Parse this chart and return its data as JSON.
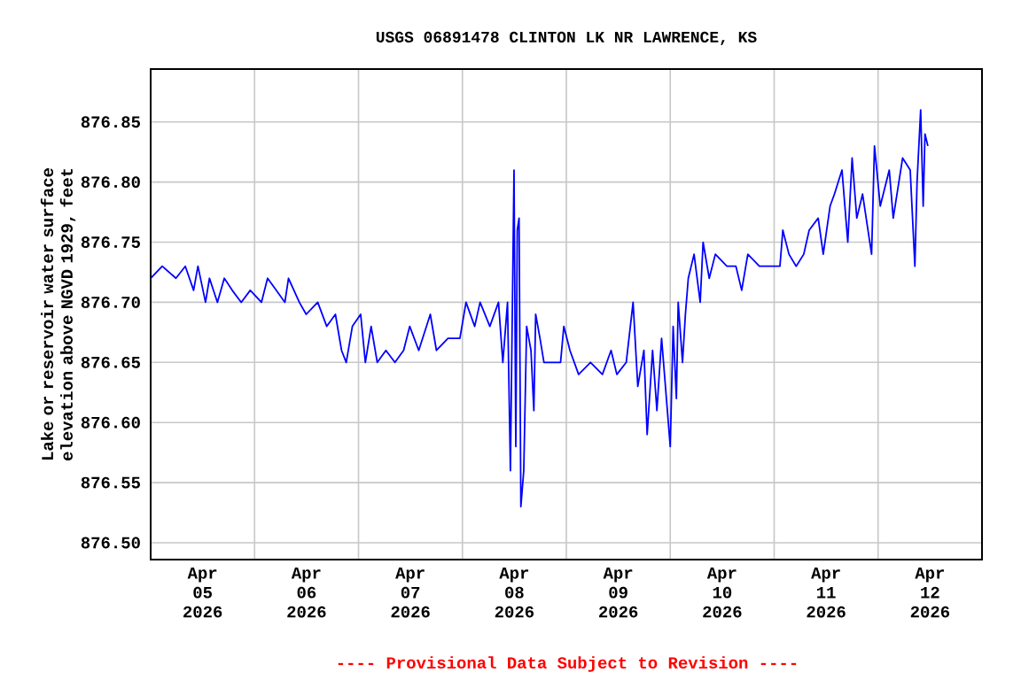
{
  "chart_data": {
    "type": "line",
    "title": "USGS 06891478 CLINTON LK NR LAWRENCE, KS",
    "ylabel": "Lake or reservoir water surface elevation above NGVD 1929, feet",
    "annotations": [
      "---- Provisional Data Subject to Revision ----"
    ],
    "xlim": [
      "2026-04-05T00:00",
      "2026-04-13T00:00"
    ],
    "xticks": [
      {
        "value": "2026-04-05T12:00",
        "label": "Apr 05 2026"
      },
      {
        "value": "2026-04-06T00:00",
        "label": null
      },
      {
        "value": "2026-04-06T12:00",
        "label": "Apr 06 2026"
      },
      {
        "value": "2026-04-07T00:00",
        "label": null
      },
      {
        "value": "2026-04-07T12:00",
        "label": "Apr 07 2026"
      },
      {
        "value": "2026-04-08T00:00",
        "label": null
      },
      {
        "value": "2026-04-08T12:00",
        "label": "Apr 08 2026"
      },
      {
        "value": "2026-04-09T00:00",
        "label": null
      },
      {
        "value": "2026-04-09T12:00",
        "label": "Apr 09 2026"
      },
      {
        "value": "2026-04-10T00:00",
        "label": null
      },
      {
        "value": "2026-04-10T12:00",
        "label": "Apr 10 2026"
      },
      {
        "value": "2026-04-11T00:00",
        "label": null
      },
      {
        "value": "2026-04-11T12:00",
        "label": "Apr 11 2026"
      },
      {
        "value": "2026-04-12T00:00",
        "label": null
      },
      {
        "value": "2026-04-12T12:00",
        "label": "Apr 12 2026"
      }
    ],
    "ylim": [
      876.486,
      876.894
    ],
    "yticks": [
      {
        "value": 876.5,
        "label": "876.50"
      },
      {
        "value": 876.55,
        "label": "876.55"
      },
      {
        "value": 876.6,
        "label": "876.60"
      },
      {
        "value": 876.65,
        "label": "876.65"
      },
      {
        "value": 876.7,
        "label": "876.70"
      },
      {
        "value": 876.75,
        "label": "876.75"
      },
      {
        "value": 876.8,
        "label": "876.80"
      },
      {
        "value": 876.85,
        "label": "876.85"
      }
    ],
    "grid": true,
    "series": [
      {
        "color": "#0000ff",
        "x": [
          "2026-04-05T00:00",
          "2026-04-05T02:40",
          "2026-04-05T05:50",
          "2026-04-05T08:00",
          "2026-04-05T09:55",
          "2026-04-05T10:55",
          "2026-04-05T12:40",
          "2026-04-05T13:35",
          "2026-04-05T15:25",
          "2026-04-05T17:00",
          "2026-04-05T18:50",
          "2026-04-05T20:55",
          "2026-04-05T23:00",
          "2026-04-06T01:35",
          "2026-04-06T03:00",
          "2026-04-06T05:00",
          "2026-04-06T07:00",
          "2026-04-06T07:50",
          "2026-04-06T10:20",
          "2026-04-06T11:55",
          "2026-04-06T14:35",
          "2026-04-06T16:40",
          "2026-04-06T18:40",
          "2026-04-06T20:05",
          "2026-04-06T21:10",
          "2026-04-06T22:35",
          "2026-04-07T00:30",
          "2026-04-07T01:35",
          "2026-04-07T02:55",
          "2026-04-07T04:20",
          "2026-04-07T06:20",
          "2026-04-07T08:25",
          "2026-04-07T10:25",
          "2026-04-07T11:50",
          "2026-04-07T13:55",
          "2026-04-07T16:35",
          "2026-04-07T18:00",
          "2026-04-07T20:40",
          "2026-04-07T23:25",
          "2026-04-08T00:50",
          "2026-04-08T02:50",
          "2026-04-08T04:05",
          "2026-04-08T06:20",
          "2026-04-08T08:20",
          "2026-04-08T09:20",
          "2026-04-08T10:25",
          "2026-04-08T11:05",
          "2026-04-08T11:55",
          "2026-04-08T12:20",
          "2026-04-08T12:40",
          "2026-04-08T13:05",
          "2026-04-08T13:30",
          "2026-04-08T14:10",
          "2026-04-08T14:50",
          "2026-04-08T15:50",
          "2026-04-08T16:30",
          "2026-04-08T16:55",
          "2026-04-08T17:55",
          "2026-04-08T18:50",
          "2026-04-08T20:00",
          "2026-04-08T22:40",
          "2026-04-08T23:25",
          "2026-04-09T00:50",
          "2026-04-09T02:50",
          "2026-04-09T05:35",
          "2026-04-09T08:20",
          "2026-04-09T10:20",
          "2026-04-09T11:40",
          "2026-04-09T13:50",
          "2026-04-09T15:25",
          "2026-04-09T16:30",
          "2026-04-09T17:55",
          "2026-04-09T18:40",
          "2026-04-09T19:55",
          "2026-04-09T20:55",
          "2026-04-09T22:00",
          "2026-04-09T23:20",
          "2026-04-10T00:00",
          "2026-04-10T00:40",
          "2026-04-10T01:25",
          "2026-04-10T01:50",
          "2026-04-10T02:50",
          "2026-04-10T03:30",
          "2026-04-10T04:10",
          "2026-04-10T05:30",
          "2026-04-10T06:55",
          "2026-04-10T07:35",
          "2026-04-10T09:00",
          "2026-04-10T10:25",
          "2026-04-10T13:05",
          "2026-04-10T15:10",
          "2026-04-10T16:30",
          "2026-04-10T17:55",
          "2026-04-10T20:35",
          "2026-04-10T23:20",
          "2026-04-11T01:20",
          "2026-04-11T02:00",
          "2026-04-11T03:25",
          "2026-04-11T05:05",
          "2026-04-11T06:50",
          "2026-04-11T08:05",
          "2026-04-11T10:10",
          "2026-04-11T11:20",
          "2026-04-11T12:55",
          "2026-04-11T13:55",
          "2026-04-11T15:40",
          "2026-04-11T17:00",
          "2026-04-11T18:00",
          "2026-04-11T19:05",
          "2026-04-11T20:25",
          "2026-04-11T22:30",
          "2026-04-11T23:10",
          "2026-04-12T00:30",
          "2026-04-12T02:35",
          "2026-04-12T03:30",
          "2026-04-12T05:40",
          "2026-04-12T07:25",
          "2026-04-12T08:30",
          "2026-04-12T09:00",
          "2026-04-12T09:50",
          "2026-04-12T10:25",
          "2026-04-12T10:50",
          "2026-04-12T11:30"
        ],
        "values": [
          876.72,
          876.73,
          876.72,
          876.73,
          876.71,
          876.73,
          876.7,
          876.72,
          876.7,
          876.72,
          876.71,
          876.7,
          876.71,
          876.7,
          876.72,
          876.71,
          876.7,
          876.72,
          876.7,
          876.69,
          876.7,
          876.68,
          876.69,
          876.66,
          876.65,
          876.68,
          876.69,
          876.65,
          876.68,
          876.65,
          876.66,
          876.65,
          876.66,
          876.68,
          876.66,
          876.69,
          876.66,
          876.67,
          876.67,
          876.7,
          876.68,
          876.7,
          876.68,
          876.7,
          876.65,
          876.7,
          876.56,
          876.81,
          876.58,
          876.76,
          876.77,
          876.53,
          876.56,
          876.68,
          876.66,
          876.61,
          876.69,
          876.67,
          876.65,
          876.65,
          876.65,
          876.68,
          876.66,
          876.64,
          876.65,
          876.64,
          876.66,
          876.64,
          876.65,
          876.7,
          876.63,
          876.66,
          876.59,
          876.66,
          876.61,
          876.67,
          876.61,
          876.58,
          876.68,
          876.62,
          876.7,
          876.65,
          876.69,
          876.72,
          876.74,
          876.7,
          876.75,
          876.72,
          876.74,
          876.73,
          876.73,
          876.71,
          876.74,
          876.73,
          876.73,
          876.73,
          876.76,
          876.74,
          876.73,
          876.74,
          876.76,
          876.77,
          876.74,
          876.78,
          876.79,
          876.81,
          876.75,
          876.82,
          876.77,
          876.79,
          876.74,
          876.83,
          876.78,
          876.81,
          876.77,
          876.82,
          876.81,
          876.73,
          876.8,
          876.86,
          876.78,
          876.84,
          876.83
        ]
      }
    ]
  }
}
